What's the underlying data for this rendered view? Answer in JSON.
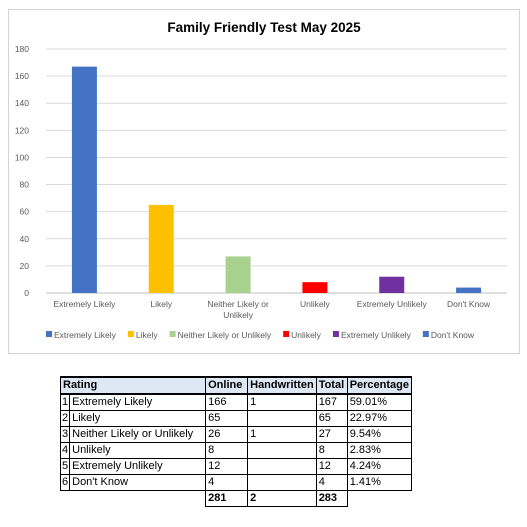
{
  "chart_data": {
    "type": "bar",
    "title": "Family Friendly Test May 2025",
    "categories": [
      "Extremely Likely",
      "Likely",
      "Neither Likely or Unlikely",
      "Unlikely",
      "Extremely Unlikely",
      "Don't Know"
    ],
    "values": [
      167,
      65,
      27,
      8,
      12,
      4
    ],
    "colors": [
      "#4472c4",
      "#ffc000",
      "#a9d18e",
      "#ff0000",
      "#7030a0",
      "#4472c4"
    ],
    "ylim": [
      0,
      180
    ],
    "yticks": [
      0,
      20,
      40,
      60,
      80,
      100,
      120,
      140,
      160,
      180
    ],
    "xlabel": "",
    "ylabel": "",
    "grid": true,
    "legend_position": "bottom"
  },
  "table": {
    "headers": [
      "Rating",
      "Online",
      "Handwritten",
      "Total",
      "Percentage"
    ],
    "rows": [
      {
        "index": "1",
        "rating": "Extremely Likely",
        "online": "166",
        "handwritten": "1",
        "total": "167",
        "percentage": "59.01%"
      },
      {
        "index": "2",
        "rating": "Likely",
        "online": "65",
        "handwritten": "",
        "total": "65",
        "percentage": "22.97%"
      },
      {
        "index": "3",
        "rating": "Neither Likely or Unlikely",
        "online": "26",
        "handwritten": "1",
        "total": "27",
        "percentage": "9.54%"
      },
      {
        "index": "4",
        "rating": "Unlikely",
        "online": "8",
        "handwritten": "",
        "total": "8",
        "percentage": "2.83%"
      },
      {
        "index": "5",
        "rating": "Extremely Unlikely",
        "online": "12",
        "handwritten": "",
        "total": "12",
        "percentage": "4.24%"
      },
      {
        "index": "6",
        "rating": "Don't Know",
        "online": "4",
        "handwritten": "",
        "total": "4",
        "percentage": "1.41%"
      }
    ],
    "totals": {
      "online": "281",
      "handwritten": "2",
      "total": "283"
    }
  }
}
